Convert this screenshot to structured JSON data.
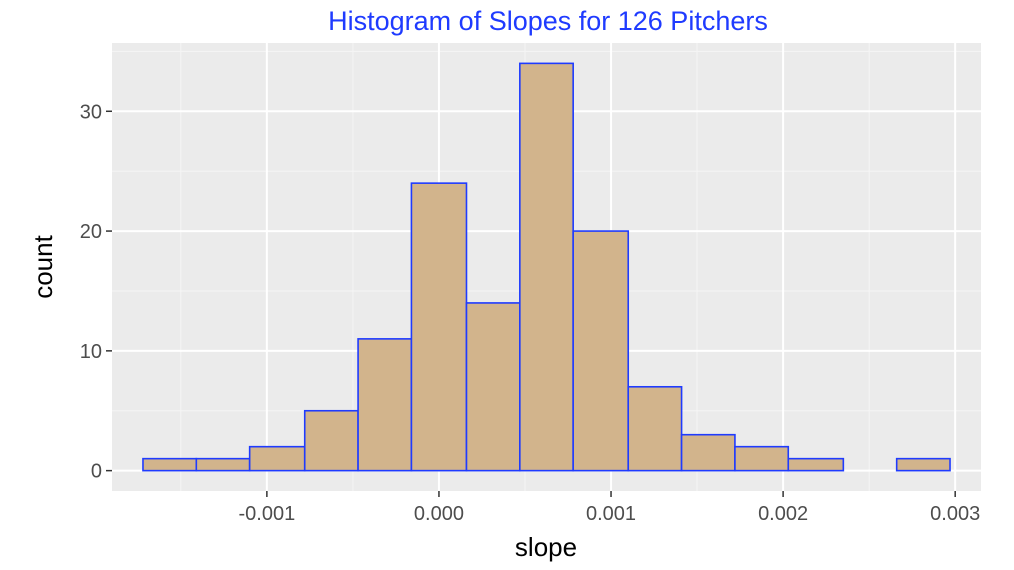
{
  "chart_data": {
    "type": "bar",
    "title": "Histogram of Slopes for 126 Pitchers",
    "xlabel": "slope",
    "ylabel": "count",
    "xlim": [
      -0.0019,
      0.00315
    ],
    "ylim": [
      -1.7,
      35.7
    ],
    "bin_width": 0.000313,
    "bins": [
      {
        "x0": -0.00172,
        "x1": -0.00141,
        "count": 1
      },
      {
        "x0": -0.00141,
        "x1": -0.0011,
        "count": 1
      },
      {
        "x0": -0.0011,
        "x1": -0.00078,
        "count": 2
      },
      {
        "x0": -0.00078,
        "x1": -0.00047,
        "count": 5
      },
      {
        "x0": -0.00047,
        "x1": -0.00016,
        "count": 11
      },
      {
        "x0": -0.00016,
        "x1": 0.00016,
        "count": 24
      },
      {
        "x0": 0.00016,
        "x1": 0.00047,
        "count": 14
      },
      {
        "x0": 0.00047,
        "x1": 0.00078,
        "count": 34
      },
      {
        "x0": 0.00078,
        "x1": 0.0011,
        "count": 20
      },
      {
        "x0": 0.0011,
        "x1": 0.00141,
        "count": 7
      },
      {
        "x0": 0.00141,
        "x1": 0.00172,
        "count": 3
      },
      {
        "x0": 0.00172,
        "x1": 0.00203,
        "count": 2
      },
      {
        "x0": 0.00203,
        "x1": 0.00235,
        "count": 1
      },
      {
        "x0": 0.00235,
        "x1": 0.00266,
        "count": 0
      },
      {
        "x0": 0.00266,
        "x1": 0.00297,
        "count": 1
      }
    ],
    "x_ticks": [
      {
        "value": -0.001,
        "label": "-0.001"
      },
      {
        "value": 0.0,
        "label": "0.000"
      },
      {
        "value": 0.001,
        "label": "0.001"
      },
      {
        "value": 0.002,
        "label": "0.002"
      },
      {
        "value": 0.003,
        "label": "0.003"
      }
    ],
    "y_ticks": [
      {
        "value": 0,
        "label": "0"
      },
      {
        "value": 10,
        "label": "10"
      },
      {
        "value": 20,
        "label": "20"
      },
      {
        "value": 30,
        "label": "30"
      }
    ],
    "grid": true,
    "legend": "none",
    "colors": {
      "title": "#1f3bff",
      "bar_fill": "#d2b48c",
      "bar_stroke": "#1f3bff",
      "panel_background": "#ebebeb",
      "grid_major": "#ffffff",
      "grid_minor": "#f5f5f5"
    }
  }
}
